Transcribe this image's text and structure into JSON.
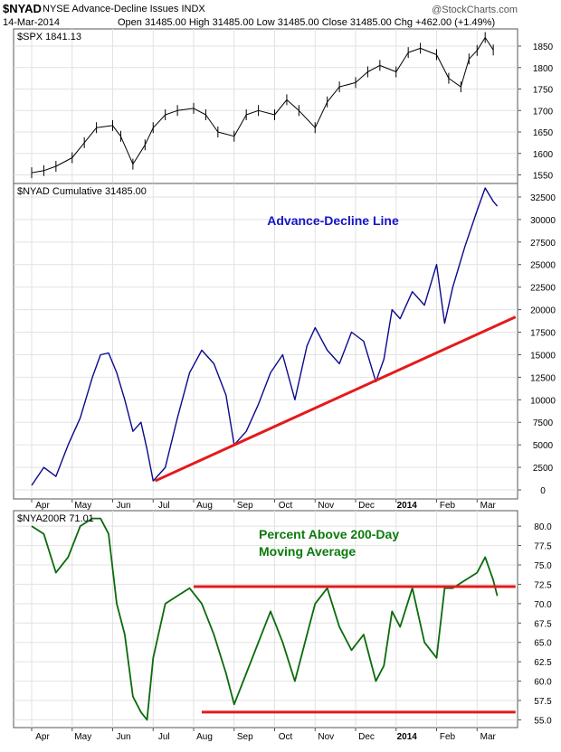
{
  "header": {
    "symbol": "$NYAD",
    "description": "NYSE Advance-Decline Issues  INDX",
    "date": "14-Mar-2014",
    "quote": "Open 31485.00   High 31485.00   Low 31485.00   Close 31485.00   Chg +462.00 (+1.49%)",
    "watermark": "@StockCharts.com"
  },
  "x_axis_labels": [
    "Apr",
    "May",
    "Jun",
    "Jul",
    "Aug",
    "Sep",
    "Oct",
    "Nov",
    "Dec",
    "2014",
    "Feb",
    "Mar"
  ],
  "colors": {
    "spx": "#000000",
    "nyad": "#0a0a8c",
    "nya200r": "#0b6b0b",
    "trendline": "#e41a1a",
    "annotation_blue": "#1414c8",
    "annotation_green": "#0b7a0b"
  },
  "chart_data": [
    {
      "type": "line",
      "name": "spx-panel",
      "legend": "$SPX 1841.13",
      "y_ticks": [
        "1850",
        "1800",
        "1750",
        "1700",
        "1650",
        "1600",
        "1550"
      ],
      "ylim": [
        1530,
        1890
      ],
      "months": [
        "Apr 2013",
        "May",
        "Jun",
        "Jul",
        "Aug",
        "Sep",
        "Oct",
        "Nov",
        "Dec",
        "Jan 2014",
        "Feb",
        "Mar"
      ],
      "x": [
        0,
        0.3,
        0.6,
        1,
        1.3,
        1.6,
        2,
        2.2,
        2.5,
        2.8,
        3,
        3.3,
        3.6,
        4,
        4.3,
        4.6,
        5,
        5.3,
        5.6,
        6,
        6.3,
        6.6,
        7,
        7.3,
        7.6,
        8,
        8.3,
        8.6,
        9,
        9.3,
        9.6,
        10,
        10.3,
        10.6,
        10.8,
        11,
        11.2,
        11.4
      ],
      "values": [
        1555,
        1560,
        1570,
        1590,
        1625,
        1660,
        1665,
        1640,
        1575,
        1620,
        1660,
        1690,
        1700,
        1705,
        1690,
        1650,
        1640,
        1690,
        1700,
        1690,
        1725,
        1700,
        1660,
        1720,
        1755,
        1765,
        1790,
        1805,
        1790,
        1835,
        1845,
        1830,
        1775,
        1755,
        1820,
        1840,
        1870,
        1841
      ]
    },
    {
      "type": "line",
      "name": "nyad-panel",
      "legend": "$NYAD Cumulative 31485.00",
      "annotation": "Advance-Decline Line",
      "y_ticks": [
        "32500",
        "30000",
        "27500",
        "25000",
        "22500",
        "20000",
        "17500",
        "15000",
        "12500",
        "10000",
        "7500",
        "5000",
        "2500",
        "0"
      ],
      "ylim": [
        -1000,
        34000
      ],
      "x": [
        0,
        0.3,
        0.6,
        0.9,
        1.2,
        1.5,
        1.7,
        1.9,
        2.1,
        2.3,
        2.5,
        2.7,
        2.85,
        3,
        3.3,
        3.6,
        3.9,
        4.2,
        4.5,
        4.8,
        5,
        5.3,
        5.6,
        5.9,
        6.2,
        6.5,
        6.8,
        7,
        7.3,
        7.6,
        7.9,
        8.2,
        8.5,
        8.7,
        8.9,
        9.1,
        9.4,
        9.7,
        10,
        10.2,
        10.4,
        10.7,
        11,
        11.2,
        11.4,
        11.5
      ],
      "values": [
        500,
        2500,
        1500,
        5000,
        8000,
        12500,
        15000,
        15200,
        13000,
        10000,
        6500,
        7500,
        4500,
        1000,
        2500,
        8000,
        13000,
        15500,
        14000,
        10500,
        5000,
        6500,
        9500,
        13000,
        15000,
        10000,
        16000,
        18000,
        15500,
        14000,
        17500,
        16500,
        12000,
        14500,
        20000,
        19000,
        22000,
        20500,
        25000,
        18500,
        22500,
        27000,
        31000,
        33500,
        32000,
        31485
      ]
    },
    {
      "type": "line",
      "name": "nya200r-panel",
      "legend": "$NYA200R 71.01",
      "annotation": [
        "Percent Above 200-Day",
        "Moving Average"
      ],
      "y_ticks": [
        "80.0",
        "77.5",
        "75.0",
        "72.5",
        "70.0",
        "67.5",
        "65.0",
        "62.5",
        "60.0",
        "57.5",
        "55.0"
      ],
      "ylim": [
        54,
        82
      ],
      "x": [
        0,
        0.3,
        0.6,
        0.9,
        1.2,
        1.5,
        1.7,
        1.9,
        2.1,
        2.3,
        2.5,
        2.7,
        2.85,
        3,
        3.3,
        3.6,
        3.9,
        4.2,
        4.5,
        4.8,
        5,
        5.3,
        5.6,
        5.9,
        6.2,
        6.5,
        6.8,
        7,
        7.3,
        7.6,
        7.9,
        8.2,
        8.5,
        8.7,
        8.9,
        9.1,
        9.4,
        9.7,
        10,
        10.2,
        10.4,
        10.7,
        11,
        11.2,
        11.4,
        11.5
      ],
      "values": [
        80,
        79,
        74,
        76,
        80,
        81,
        81,
        79,
        70,
        66,
        58,
        56,
        55,
        63,
        70,
        71,
        72,
        70,
        66,
        61,
        57,
        61,
        65,
        69,
        65,
        60,
        66,
        70,
        72,
        67,
        64,
        66,
        60,
        62,
        69,
        67,
        72,
        65,
        63,
        72,
        72,
        73,
        74,
        76,
        73,
        71
      ]
    }
  ],
  "trendlines": [
    {
      "panel": "nyad-panel",
      "from": [
        3.05,
        1000
      ],
      "to": [
        11.95,
        19200
      ]
    },
    {
      "panel": "nya200r-panel",
      "from": [
        4.0,
        72.2
      ],
      "to": [
        11.95,
        72.2
      ]
    },
    {
      "panel": "nya200r-panel",
      "from": [
        4.2,
        56.0
      ],
      "to": [
        11.95,
        56.0
      ]
    }
  ]
}
